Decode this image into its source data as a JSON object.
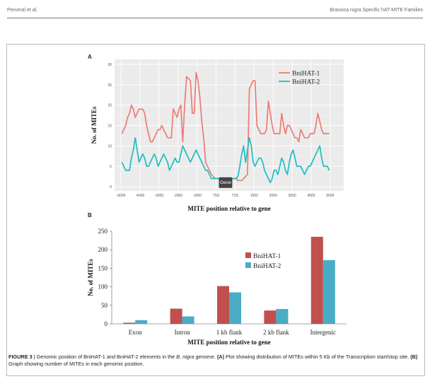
{
  "header": {
    "left": "Perumal et al.",
    "right": "Brassica nigra Specific hAT-MITE Families"
  },
  "panel_a_label": "A",
  "panel_b_label": "B",
  "caption": {
    "figure": "FIGURE 3",
    "sep": " | ",
    "t1": "Genomic position of BniHAT-1 and BniHAT-2 elements in the ",
    "italic": "B. nigra",
    "t2": " genome. ",
    "a_label": "(A)",
    "a_text": " Plot showing distribution of MITEs within 5 Kb of the Transcription start/stop site. ",
    "b_label": "(B)",
    "b_text": " Graph showing number of MITEs in each genomic position."
  },
  "colors": {
    "bnihat1_line": "#ef7b73",
    "bnihat2_line": "#20bdc3",
    "bnihat1_bar": "#c0504d",
    "bnihat2_bar": "#4bacc6"
  },
  "chart_data": [
    {
      "type": "line",
      "xlabel": "MITE position relative to gene",
      "ylabel": "No. of MITEs",
      "ylim": [
        0,
        30
      ],
      "yticks": [
        "0",
        "5",
        "10",
        "15",
        "20",
        "25",
        "30"
      ],
      "xtick_labels": [
        "-5000",
        "-4000",
        "-3000",
        "-2000",
        "-1000",
        "TSS",
        "TSS",
        "1000",
        "2000",
        "3000",
        "4000",
        "5000"
      ],
      "gene_label": "Gene",
      "grid": true,
      "legend_position": "top-right",
      "upstream_x": [
        -4950,
        -4850,
        -4750,
        -4650,
        -4550,
        -4450,
        -4350,
        -4250,
        -4150,
        -4050,
        -3950,
        -3850,
        -3750,
        -3650,
        -3550,
        -3450,
        -3350,
        -3250,
        -3150,
        -3050,
        -2950,
        -2850,
        -2750,
        -2650,
        -2550,
        -2450,
        -2350,
        -2250,
        -2150,
        -2050,
        -1950,
        -1850,
        -1750,
        -1650,
        -1550,
        -1450,
        -1350,
        -1250,
        -1150,
        -1050,
        -950,
        -850,
        -750,
        -650,
        -550,
        -450,
        -350,
        -250,
        -150,
        -50
      ],
      "downstream_x": [
        50,
        150,
        250,
        350,
        450,
        550,
        650,
        750,
        850,
        950,
        1050,
        1150,
        1250,
        1350,
        1450,
        1550,
        1650,
        1750,
        1850,
        1950,
        2050,
        2150,
        2250,
        2350,
        2450,
        2550,
        2650,
        2750,
        2850,
        2950,
        3050,
        3150,
        3250,
        3350,
        3450,
        3550,
        3650,
        3750,
        3850,
        3950,
        4050,
        4150,
        4250,
        4350,
        4450,
        4550,
        4650,
        4750,
        4850,
        4950
      ],
      "series": [
        {
          "name": "BniHAT-1",
          "upstream": [
            13,
            14,
            15,
            17,
            18,
            20,
            19,
            17,
            18,
            19,
            19,
            19,
            18,
            15,
            13,
            11,
            11,
            12,
            13,
            14,
            14,
            15,
            14,
            13,
            12,
            12,
            12,
            19,
            18,
            17,
            19,
            20,
            11,
            20,
            27,
            26.5,
            26,
            18,
            18,
            28,
            26,
            22,
            16,
            12,
            6,
            5,
            4,
            3,
            2.5,
            2
          ],
          "downstream": [
            2,
            1.5,
            1.5,
            1.5,
            2,
            2.5,
            3,
            24,
            25,
            26,
            26,
            15,
            14,
            13,
            13,
            13,
            14,
            21,
            18,
            15,
            13,
            13,
            13,
            13,
            18,
            15,
            13,
            15,
            15,
            14,
            13,
            12,
            12,
            11,
            14,
            13,
            12,
            12,
            12,
            13,
            13,
            13,
            15,
            18,
            16,
            14,
            13,
            13,
            13,
            13
          ]
        },
        {
          "name": "BniHAT-2",
          "upstream": [
            6,
            5,
            4,
            4,
            4,
            7,
            9,
            12,
            9,
            6,
            7,
            8,
            7,
            5,
            5,
            6,
            7,
            8,
            7,
            5,
            6,
            7,
            8,
            7,
            6,
            4,
            5,
            6,
            7,
            6,
            6,
            8,
            10,
            9,
            8,
            7,
            6,
            7,
            8,
            9,
            8,
            7,
            6,
            5,
            4,
            4,
            3,
            2,
            2,
            2
          ],
          "downstream": [
            2,
            2.5,
            5,
            8,
            10,
            6,
            9,
            12,
            10,
            6,
            5,
            6,
            7,
            7,
            6,
            4,
            3,
            2,
            1,
            2,
            4,
            4,
            3,
            5,
            7,
            6,
            4,
            3,
            6,
            8,
            9,
            7,
            5,
            5,
            5,
            4,
            3,
            4,
            5,
            5,
            6,
            7,
            8,
            9,
            10,
            7,
            5,
            5,
            5,
            4
          ]
        }
      ]
    },
    {
      "type": "bar",
      "xlabel": "MITE position relative to gene",
      "ylabel": "No. of MITEs",
      "ylim": [
        0,
        250
      ],
      "yticks": [
        0,
        50,
        100,
        150,
        200,
        250
      ],
      "categories": [
        "Exon",
        "Intron",
        "1 kb flank",
        "2 kb flank",
        "Intergenic"
      ],
      "legend_position": "right",
      "series": [
        {
          "name": "BniHAT-1",
          "values": [
            3,
            41,
            102,
            36,
            235
          ]
        },
        {
          "name": "BniHAT-2",
          "values": [
            10,
            20,
            85,
            40,
            172
          ]
        }
      ]
    }
  ]
}
